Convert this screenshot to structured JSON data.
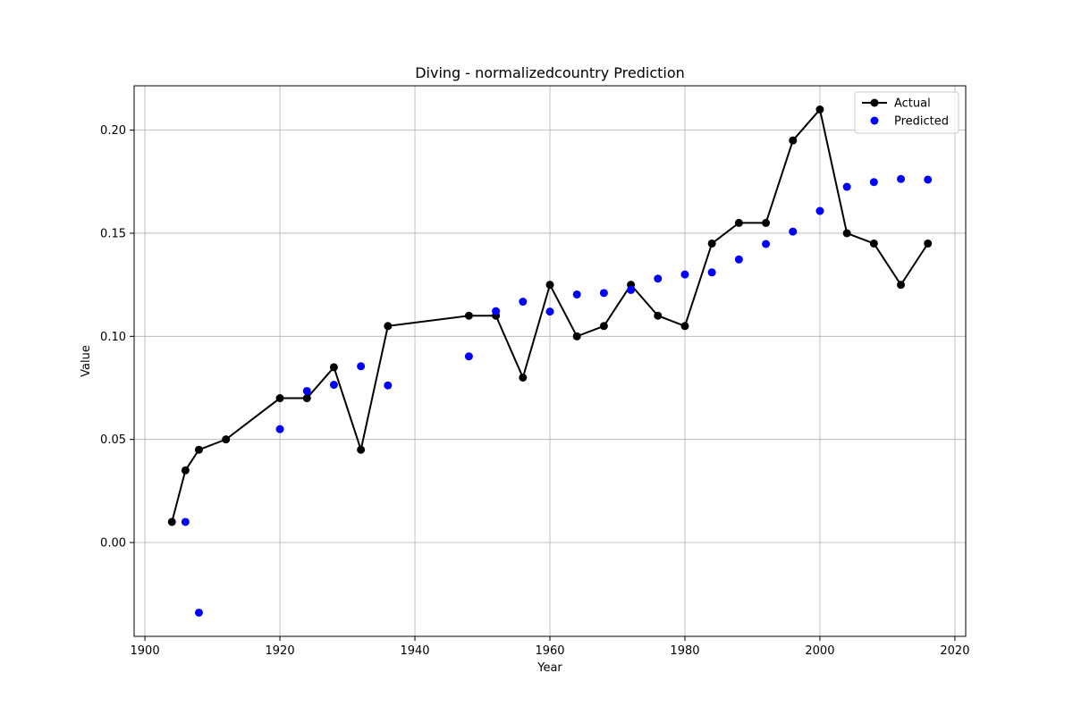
{
  "chart_data": {
    "type": "line",
    "title": "Diving - normalizedcountry Prediction",
    "xlabel": "Year",
    "ylabel": "Value",
    "xlim": [
      1898.4,
      2021.6
    ],
    "ylim": [
      -0.0455,
      0.2215
    ],
    "xticks": [
      1900,
      1920,
      1940,
      1960,
      1980,
      2000,
      2020
    ],
    "yticks": [
      0.0,
      0.05,
      0.1,
      0.15,
      0.2
    ],
    "xtick_labels": [
      "1900",
      "1920",
      "1940",
      "1960",
      "1980",
      "2000",
      "2020"
    ],
    "ytick_labels": [
      "0.00",
      "0.05",
      "0.10",
      "0.15",
      "0.20"
    ],
    "grid": true,
    "legend": "top-right",
    "series": [
      {
        "name": "Actual",
        "kind": "line-markers",
        "color": "#000000",
        "x": [
          1904,
          1906,
          1908,
          1912,
          1920,
          1924,
          1928,
          1932,
          1936,
          1948,
          1952,
          1956,
          1960,
          1964,
          1968,
          1972,
          1976,
          1980,
          1984,
          1988,
          1992,
          1996,
          2000,
          2004,
          2008,
          2012,
          2016
        ],
        "y": [
          0.01,
          0.035,
          0.045,
          0.05,
          0.07,
          0.07,
          0.085,
          0.045,
          0.105,
          0.11,
          0.11,
          0.08,
          0.125,
          0.1,
          0.105,
          0.125,
          0.11,
          0.105,
          0.145,
          0.155,
          0.155,
          0.195,
          0.21,
          0.15,
          0.145,
          0.125,
          0.145
        ]
      },
      {
        "name": "Predicted",
        "kind": "scatter",
        "color": "#0000ff",
        "x": [
          1906,
          1908,
          1920,
          1924,
          1928,
          1932,
          1936,
          1948,
          1952,
          1956,
          1960,
          1964,
          1968,
          1972,
          1976,
          1980,
          1984,
          1988,
          1992,
          1996,
          2000,
          2004,
          2008,
          2012,
          2016
        ],
        "y": [
          0.01,
          -0.034,
          0.055,
          0.0735,
          0.0765,
          0.0855,
          0.0762,
          0.0903,
          0.1122,
          0.1168,
          0.112,
          0.1203,
          0.121,
          0.1225,
          0.128,
          0.13,
          0.131,
          0.1373,
          0.1448,
          0.1508,
          0.1608,
          0.1725,
          0.1748,
          0.1763,
          0.176
        ]
      }
    ]
  }
}
